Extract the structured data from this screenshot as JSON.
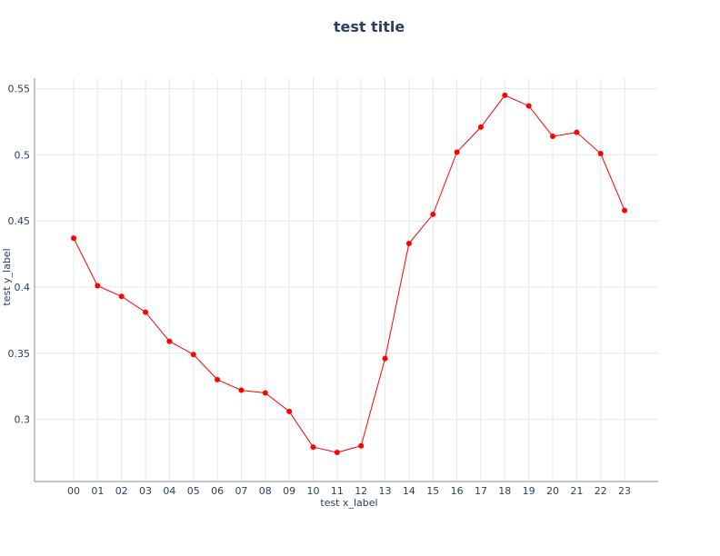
{
  "chart_data": {
    "type": "line",
    "title": "test title",
    "xlabel": "test x_label",
    "ylabel": "test y_label",
    "categories": [
      "00",
      "01",
      "02",
      "03",
      "04",
      "05",
      "06",
      "07",
      "08",
      "09",
      "10",
      "11",
      "12",
      "13",
      "14",
      "15",
      "16",
      "17",
      "18",
      "19",
      "20",
      "21",
      "22",
      "23"
    ],
    "series": [
      {
        "values": [
          0.437,
          0.401,
          0.393,
          0.381,
          0.359,
          0.349,
          0.33,
          0.322,
          0.32,
          0.306,
          0.279,
          0.275,
          0.28,
          0.346,
          0.433,
          0.455,
          0.502,
          0.521,
          0.545,
          0.537,
          0.514,
          0.517,
          0.501,
          0.458
        ]
      }
    ],
    "ylim": [
      0.253,
      0.558
    ],
    "yticks": [
      0.3,
      0.35,
      0.4,
      0.45,
      0.5,
      0.55
    ],
    "ytick_labels": [
      "0.3",
      "0.35",
      "0.4",
      "0.45",
      "0.5",
      "0.55"
    ],
    "grid": true,
    "colors": {
      "line": "#ff0000",
      "marker": "#ff0000",
      "text": "#2a3f5f",
      "grid": "#e8e8e8",
      "axis": "#8c8c8c"
    }
  }
}
